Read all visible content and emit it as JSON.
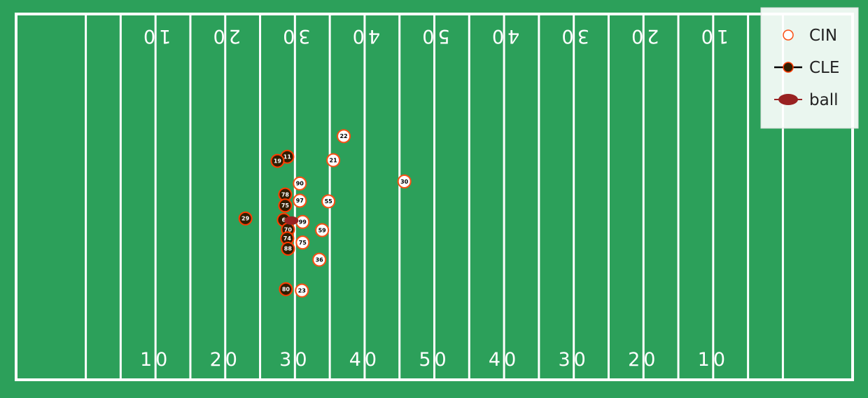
{
  "colors": {
    "field": "#2ca05a",
    "lines": "#ffffff",
    "cin_edge": "#fb4f14",
    "cin_fill": "#ffffff",
    "cle_fill": "#311d00",
    "cle_edge": "#ff3c00",
    "ball": "#992222"
  },
  "chart_data": {
    "type": "scatter",
    "title": "",
    "xlabel": "",
    "ylabel": "",
    "xlim": [
      0,
      120
    ],
    "ylim": [
      0,
      53.3
    ],
    "grid": false,
    "legend_position": "top-right",
    "yard_numbers_bottom": [
      "10",
      "20",
      "30",
      "40",
      "50",
      "40",
      "30",
      "20",
      "10"
    ],
    "yard_numbers_top": [
      "10",
      "20",
      "30",
      "40",
      "50",
      "40",
      "30",
      "20",
      "10"
    ],
    "legend": [
      {
        "label": "CIN",
        "marker": "open-circle"
      },
      {
        "label": "CLE",
        "marker": "line-dot"
      },
      {
        "label": "ball",
        "marker": "ellipse"
      }
    ],
    "series": [
      {
        "name": "CIN",
        "points": [
          {
            "jersey": "22",
            "x": 47.0,
            "y": 35.5
          },
          {
            "jersey": "21",
            "x": 45.5,
            "y": 32.0
          },
          {
            "jersey": "30",
            "x": 55.7,
            "y": 28.9
          },
          {
            "jersey": "90",
            "x": 40.7,
            "y": 28.6
          },
          {
            "jersey": "97",
            "x": 40.7,
            "y": 26.1
          },
          {
            "jersey": "55",
            "x": 44.8,
            "y": 26.0
          },
          {
            "jersey": "99",
            "x": 41.1,
            "y": 23.0
          },
          {
            "jersey": "59",
            "x": 43.9,
            "y": 21.8
          },
          {
            "jersey": "75",
            "x": 41.1,
            "y": 20.0
          },
          {
            "jersey": "36",
            "x": 43.5,
            "y": 17.5
          },
          {
            "jersey": "23",
            "x": 41.0,
            "y": 13.0
          }
        ]
      },
      {
        "name": "CLE",
        "points": [
          {
            "jersey": "11",
            "x": 38.9,
            "y": 32.5
          },
          {
            "jersey": "19",
            "x": 37.5,
            "y": 31.9
          },
          {
            "jersey": "78",
            "x": 38.6,
            "y": 27.0
          },
          {
            "jersey": "75",
            "x": 38.6,
            "y": 25.4
          },
          {
            "jersey": "29",
            "x": 32.9,
            "y": 23.5
          },
          {
            "jersey": "6",
            "x": 38.4,
            "y": 23.3
          },
          {
            "jersey": "70",
            "x": 39.0,
            "y": 21.9
          },
          {
            "jersey": "74",
            "x": 38.9,
            "y": 20.6
          },
          {
            "jersey": "88",
            "x": 39.0,
            "y": 19.1
          },
          {
            "jersey": "80",
            "x": 38.7,
            "y": 13.2
          }
        ]
      },
      {
        "name": "ball",
        "points": [
          {
            "x": 39.5,
            "y": 23.2
          }
        ]
      }
    ]
  }
}
